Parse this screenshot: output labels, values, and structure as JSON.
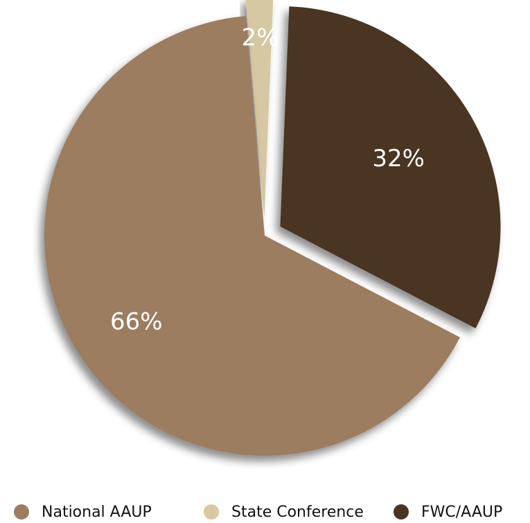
{
  "chart_data": {
    "type": "pie",
    "title": "",
    "slices": [
      {
        "name": "National AAUP",
        "value": 66,
        "label": "66%",
        "color": "#9c7d61",
        "exploded": false
      },
      {
        "name": "State Conference",
        "value": 2,
        "label": "2%",
        "color": "#d6c8a2",
        "exploded": true
      },
      {
        "name": "FWC/AAUP",
        "value": 32,
        "label": "32%",
        "color": "#4a3424",
        "exploded": true
      }
    ],
    "legend": {
      "placement": "bottom",
      "items": [
        "National AAUP",
        "State Conference",
        "FWC/AAUP"
      ]
    }
  }
}
